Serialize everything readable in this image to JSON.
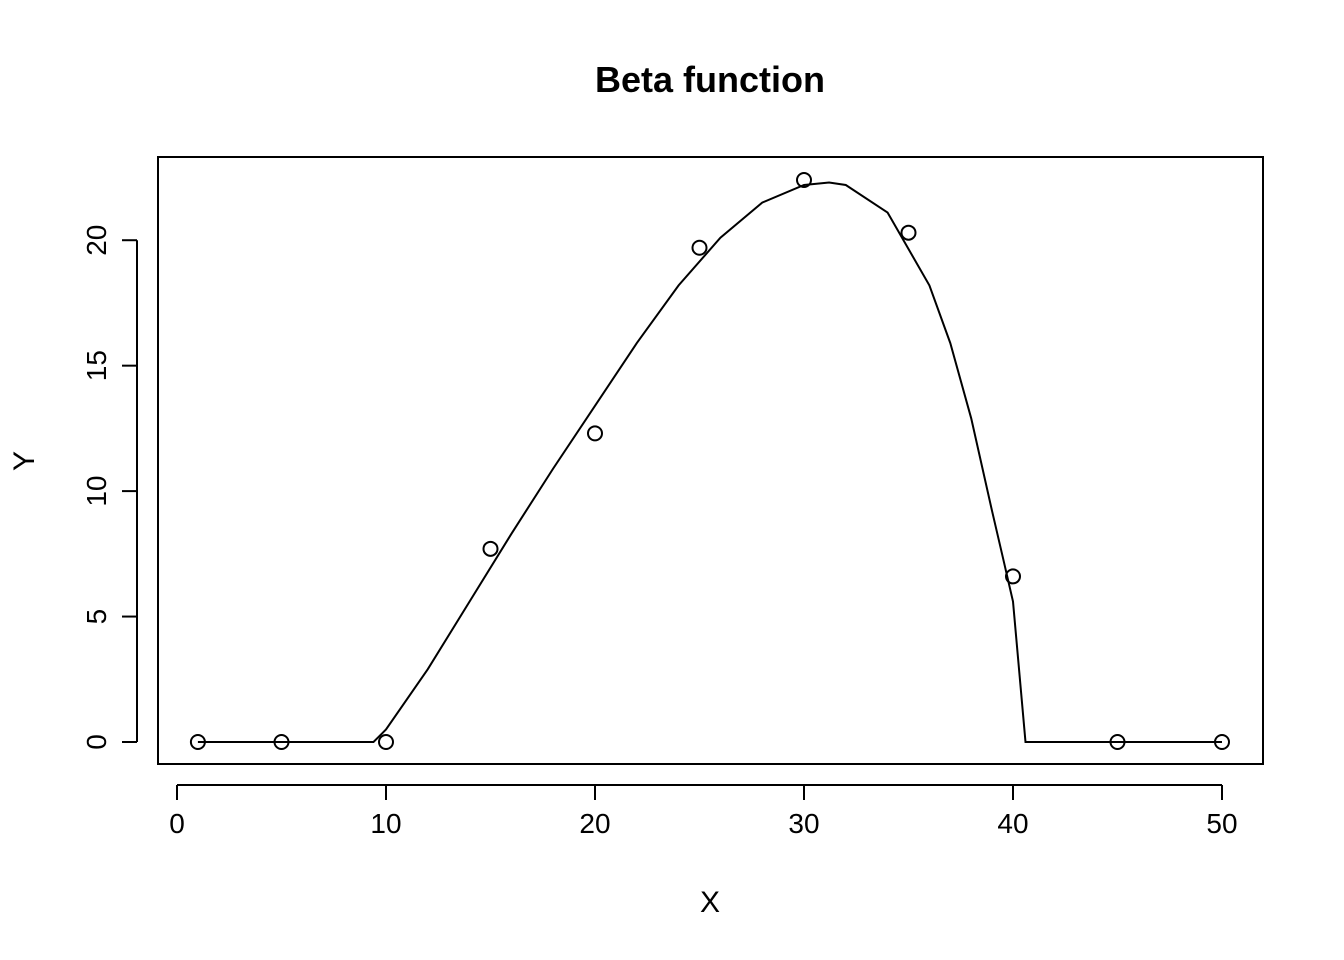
{
  "chart_data": {
    "type": "scatter",
    "title": "Beta function",
    "xlabel": "X",
    "ylabel": "Y",
    "xlim": [
      0,
      50
    ],
    "ylim": [
      0,
      22.4
    ],
    "grid": false,
    "x_ticks": [
      0,
      10,
      20,
      30,
      40,
      50
    ],
    "y_ticks": [
      0,
      5,
      10,
      15,
      20
    ],
    "points": {
      "x": [
        1,
        5,
        10,
        15,
        20,
        25,
        30,
        35,
        40,
        45,
        50
      ],
      "y": [
        0,
        0,
        0,
        7.7,
        12.3,
        19.7,
        22.4,
        20.3,
        6.6,
        0,
        0
      ]
    },
    "fitted_curve": {
      "x": [
        1,
        9.4,
        10,
        12,
        14,
        16,
        18,
        20,
        22,
        24,
        26,
        28,
        30,
        31.2,
        32,
        34,
        36,
        37,
        38,
        39,
        39.5,
        40,
        40.6,
        45,
        50
      ],
      "y": [
        0,
        0,
        0.5,
        2.9,
        5.6,
        8.3,
        10.9,
        13.4,
        15.9,
        18.2,
        20.1,
        21.5,
        22.2,
        22.3,
        22.2,
        21.1,
        18.2,
        15.9,
        12.9,
        9.2,
        7.4,
        5.6,
        0,
        0,
        0
      ]
    }
  }
}
